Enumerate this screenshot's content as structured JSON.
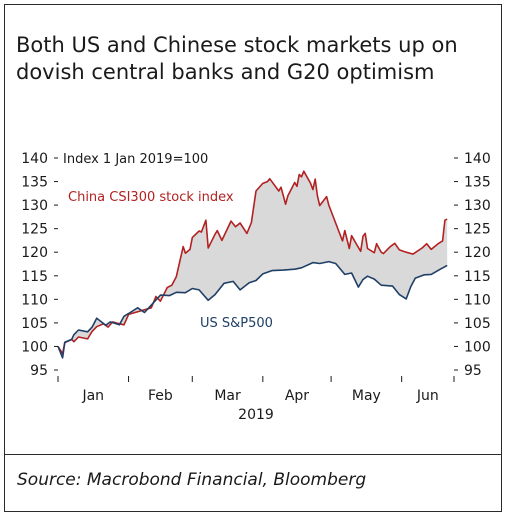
{
  "title": "Both US and Chinese stock markets up on dovish central banks and G20 optimism",
  "source": "Source: Macrobond Financial, Bloomberg",
  "chart_data": {
    "type": "line",
    "annotation": "Index 1 Jan 2019=100",
    "xlabel": "2019",
    "ylim": [
      95,
      140
    ],
    "y_ticks": [
      95,
      100,
      105,
      110,
      115,
      120,
      125,
      130,
      135,
      140
    ],
    "x_ticks": [
      "Jan",
      "Feb",
      "Mar",
      "Apr",
      "May",
      "Jun"
    ],
    "grid": false,
    "fill_between_series": true,
    "colors": {
      "china": "#b22222",
      "us": "#1f3f66",
      "fill": "#d9d9d9"
    },
    "x_range": [
      "2019-01-01",
      "2019-06-24"
    ],
    "series": [
      {
        "name": "China CSI300 stock index",
        "color": "#b22222",
        "points": [
          [
            "2019-01-01",
            100.0
          ],
          [
            "2019-01-03",
            98.5
          ],
          [
            "2019-01-04",
            100.8
          ],
          [
            "2019-01-07",
            101.5
          ],
          [
            "2019-01-08",
            101.0
          ],
          [
            "2019-01-10",
            102.0
          ],
          [
            "2019-01-14",
            101.6
          ],
          [
            "2019-01-16",
            103.2
          ],
          [
            "2019-01-18",
            104.2
          ],
          [
            "2019-01-21",
            104.8
          ],
          [
            "2019-01-23",
            104.1
          ],
          [
            "2019-01-25",
            105.2
          ],
          [
            "2019-01-28",
            104.8
          ],
          [
            "2019-01-30",
            104.6
          ],
          [
            "2019-02-01",
            106.8
          ],
          [
            "2019-02-11",
            108.2
          ],
          [
            "2019-02-13",
            110.6
          ],
          [
            "2019-02-15",
            109.6
          ],
          [
            "2019-02-18",
            112.5
          ],
          [
            "2019-02-20",
            113.0
          ],
          [
            "2019-02-22",
            114.8
          ],
          [
            "2019-02-25",
            121.2
          ],
          [
            "2019-02-26",
            119.8
          ],
          [
            "2019-02-28",
            120.6
          ],
          [
            "2019-03-01",
            123.1
          ],
          [
            "2019-03-04",
            124.5
          ],
          [
            "2019-03-05",
            124.3
          ],
          [
            "2019-03-07",
            126.8
          ],
          [
            "2019-03-08",
            120.9
          ],
          [
            "2019-03-11",
            123.8
          ],
          [
            "2019-03-12",
            124.6
          ],
          [
            "2019-03-14",
            122.5
          ],
          [
            "2019-03-18",
            126.6
          ],
          [
            "2019-03-20",
            125.4
          ],
          [
            "2019-03-22",
            126.2
          ],
          [
            "2019-03-25",
            124.0
          ],
          [
            "2019-03-27",
            126.3
          ],
          [
            "2019-03-29",
            133.0
          ],
          [
            "2019-04-01",
            134.6
          ],
          [
            "2019-04-03",
            135.0
          ],
          [
            "2019-04-04",
            135.6
          ],
          [
            "2019-04-08",
            133.0
          ],
          [
            "2019-04-09",
            133.8
          ],
          [
            "2019-04-11",
            130.2
          ],
          [
            "2019-04-12",
            132.0
          ],
          [
            "2019-04-15",
            134.8
          ],
          [
            "2019-04-16",
            134.0
          ],
          [
            "2019-04-17",
            136.5
          ],
          [
            "2019-04-18",
            136.0
          ],
          [
            "2019-04-19",
            137.2
          ],
          [
            "2019-04-22",
            134.6
          ],
          [
            "2019-04-23",
            133.3
          ],
          [
            "2019-04-24",
            135.5
          ],
          [
            "2019-04-25",
            132.0
          ],
          [
            "2019-04-26",
            129.9
          ],
          [
            "2019-04-29",
            131.8
          ],
          [
            "2019-04-30",
            130.0
          ],
          [
            "2019-05-06",
            122.4
          ],
          [
            "2019-05-07",
            124.6
          ],
          [
            "2019-05-09",
            120.8
          ],
          [
            "2019-05-10",
            123.5
          ],
          [
            "2019-05-13",
            121.0
          ],
          [
            "2019-05-14",
            120.2
          ],
          [
            "2019-05-15",
            123.4
          ],
          [
            "2019-05-16",
            124.0
          ],
          [
            "2019-05-17",
            120.8
          ],
          [
            "2019-05-20",
            119.9
          ],
          [
            "2019-05-21",
            121.8
          ],
          [
            "2019-05-23",
            120.0
          ],
          [
            "2019-05-24",
            119.7
          ],
          [
            "2019-05-27",
            121.2
          ],
          [
            "2019-05-29",
            121.9
          ],
          [
            "2019-05-31",
            120.5
          ],
          [
            "2019-06-03",
            120.0
          ],
          [
            "2019-06-06",
            119.6
          ],
          [
            "2019-06-10",
            120.9
          ],
          [
            "2019-06-12",
            121.8
          ],
          [
            "2019-06-14",
            120.6
          ],
          [
            "2019-06-17",
            121.8
          ],
          [
            "2019-06-19",
            122.4
          ],
          [
            "2019-06-20",
            126.8
          ],
          [
            "2019-06-21",
            127.0
          ]
        ]
      },
      {
        "name": "US S&P500",
        "color": "#1f3f66",
        "points": [
          [
            "2019-01-01",
            100.0
          ],
          [
            "2019-01-03",
            97.6
          ],
          [
            "2019-01-04",
            100.9
          ],
          [
            "2019-01-07",
            101.5
          ],
          [
            "2019-01-08",
            102.5
          ],
          [
            "2019-01-10",
            103.5
          ],
          [
            "2019-01-14",
            103.1
          ],
          [
            "2019-01-16",
            104.1
          ],
          [
            "2019-01-18",
            106.0
          ],
          [
            "2019-01-22",
            104.5
          ],
          [
            "2019-01-24",
            105.2
          ],
          [
            "2019-01-28",
            104.6
          ],
          [
            "2019-01-30",
            106.4
          ],
          [
            "2019-02-01",
            107.0
          ],
          [
            "2019-02-05",
            108.2
          ],
          [
            "2019-02-08",
            107.2
          ],
          [
            "2019-02-12",
            109.3
          ],
          [
            "2019-02-15",
            110.9
          ],
          [
            "2019-02-19",
            110.8
          ],
          [
            "2019-02-22",
            111.5
          ],
          [
            "2019-02-26",
            111.4
          ],
          [
            "2019-03-01",
            112.3
          ],
          [
            "2019-03-04",
            112.0
          ],
          [
            "2019-03-08",
            109.8
          ],
          [
            "2019-03-11",
            111.0
          ],
          [
            "2019-03-15",
            113.4
          ],
          [
            "2019-03-19",
            113.8
          ],
          [
            "2019-03-22",
            112.0
          ],
          [
            "2019-03-26",
            113.5
          ],
          [
            "2019-03-29",
            114.0
          ],
          [
            "2019-04-01",
            115.4
          ],
          [
            "2019-04-05",
            116.1
          ],
          [
            "2019-04-10",
            116.2
          ],
          [
            "2019-04-15",
            116.4
          ],
          [
            "2019-04-18",
            116.7
          ],
          [
            "2019-04-23",
            117.8
          ],
          [
            "2019-04-26",
            117.6
          ],
          [
            "2019-04-30",
            118.0
          ],
          [
            "2019-05-03",
            117.6
          ],
          [
            "2019-05-07",
            115.3
          ],
          [
            "2019-05-10",
            115.6
          ],
          [
            "2019-05-13",
            112.6
          ],
          [
            "2019-05-15",
            114.2
          ],
          [
            "2019-05-17",
            114.9
          ],
          [
            "2019-05-20",
            114.3
          ],
          [
            "2019-05-23",
            113.0
          ],
          [
            "2019-05-28",
            112.8
          ],
          [
            "2019-05-31",
            111.0
          ],
          [
            "2019-06-03",
            110.1
          ],
          [
            "2019-06-05",
            112.7
          ],
          [
            "2019-06-07",
            114.5
          ],
          [
            "2019-06-11",
            115.2
          ],
          [
            "2019-06-14",
            115.3
          ],
          [
            "2019-06-18",
            116.4
          ],
          [
            "2019-06-21",
            117.2
          ]
        ]
      }
    ]
  }
}
